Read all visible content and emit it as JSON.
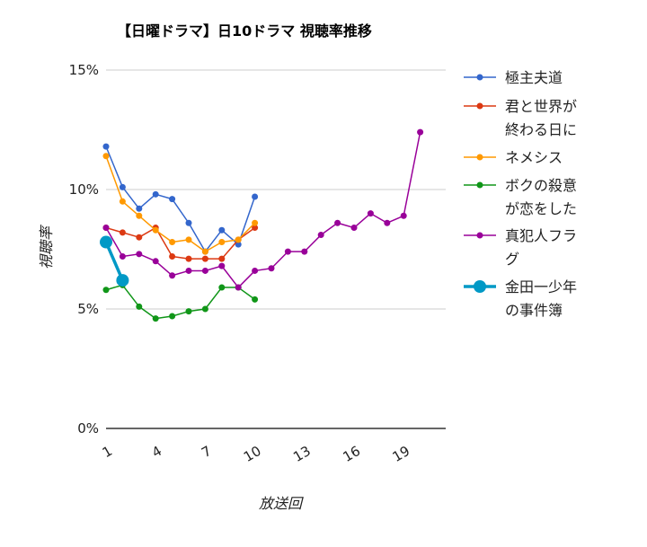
{
  "chart_data": {
    "type": "line",
    "title": "【日曜ドラマ】日10ドラマ 視聴率推移",
    "xlabel": "放送回",
    "ylabel": "視聴率",
    "xlim": [
      1,
      21
    ],
    "ylim": [
      0,
      15
    ],
    "x_ticks": [
      "1",
      "4",
      "7",
      "10",
      "13",
      "16",
      "19"
    ],
    "y_ticks": [
      "0%",
      "5%",
      "10%",
      "15%"
    ],
    "grid": true,
    "legend_position": "right",
    "series": [
      {
        "name": "極主夫道",
        "name_lines": [
          "極主夫道"
        ],
        "color": "#3366cc",
        "highlight": false,
        "x": [
          1,
          2,
          3,
          4,
          5,
          6,
          7,
          8,
          9,
          10
        ],
        "values": [
          11.8,
          10.1,
          9.2,
          9.8,
          9.6,
          8.6,
          7.4,
          8.3,
          7.7,
          9.7
        ]
      },
      {
        "name": "君と世界が終わる日に",
        "name_lines": [
          "君と世界が",
          "終わる日に"
        ],
        "color": "#dc3912",
        "highlight": false,
        "x": [
          1,
          2,
          3,
          4,
          5,
          6,
          7,
          8,
          9,
          10
        ],
        "values": [
          8.4,
          8.2,
          8.0,
          8.4,
          7.2,
          7.1,
          7.1,
          7.1,
          7.9,
          8.4
        ]
      },
      {
        "name": "ネメシス",
        "name_lines": [
          "ネメシス"
        ],
        "color": "#ff9900",
        "highlight": false,
        "x": [
          1,
          2,
          3,
          4,
          5,
          6,
          7,
          8,
          9,
          10
        ],
        "values": [
          11.4,
          9.5,
          8.9,
          8.3,
          7.8,
          7.9,
          7.4,
          7.8,
          7.9,
          8.6
        ]
      },
      {
        "name": "ボクの殺意が恋をした",
        "name_lines": [
          "ボクの殺意",
          "が恋をした"
        ],
        "color": "#109618",
        "highlight": false,
        "x": [
          1,
          2,
          3,
          4,
          5,
          6,
          7,
          8,
          9,
          10
        ],
        "values": [
          5.8,
          6.0,
          5.1,
          4.6,
          4.7,
          4.9,
          5.0,
          5.9,
          5.9,
          5.4
        ]
      },
      {
        "name": "真犯人フラグ",
        "name_lines": [
          "真犯人フラ",
          "グ"
        ],
        "color": "#990099",
        "highlight": false,
        "x": [
          1,
          2,
          3,
          4,
          5,
          6,
          7,
          8,
          9,
          10,
          11,
          12,
          13,
          14,
          15,
          16,
          17,
          18,
          19,
          20
        ],
        "values": [
          8.4,
          7.2,
          7.3,
          7.0,
          6.4,
          6.6,
          6.6,
          6.8,
          5.9,
          6.6,
          6.7,
          7.4,
          7.4,
          8.1,
          8.6,
          8.4,
          9.0,
          8.6,
          8.9,
          12.4
        ]
      },
      {
        "name": "金田一少年の事件簿",
        "name_lines": [
          "金田一少年",
          "の事件簿"
        ],
        "color": "#0099c6",
        "highlight": true,
        "x": [
          1,
          2
        ],
        "values": [
          7.8,
          6.2
        ]
      }
    ]
  }
}
